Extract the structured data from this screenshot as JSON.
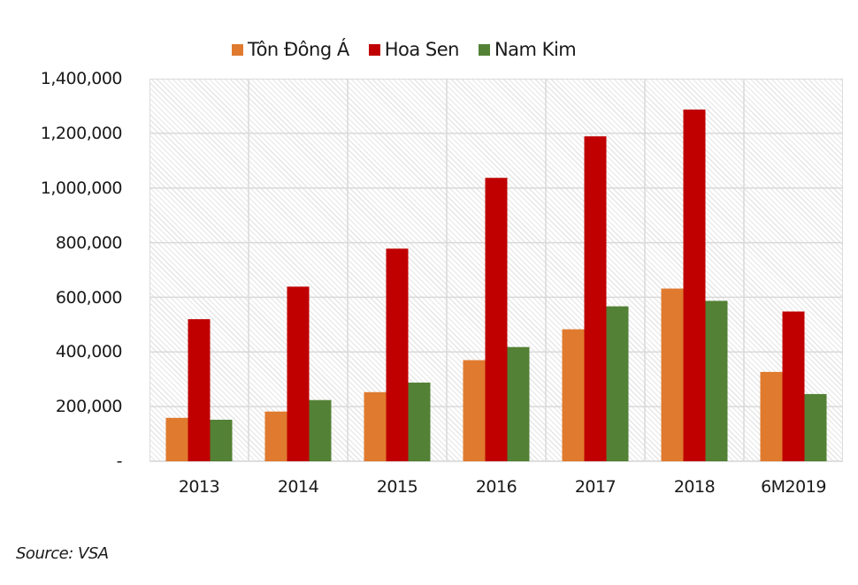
{
  "chart_data": {
    "type": "bar",
    "title": "",
    "xlabel": "",
    "ylabel": "",
    "categories": [
      "2013",
      "2014",
      "2015",
      "2016",
      "2017",
      "2018",
      "6M2019"
    ],
    "series": [
      {
        "name": "Tôn Đông Á",
        "color": "#E07A2E",
        "values": [
          159000,
          182000,
          253000,
          370000,
          483000,
          632000,
          327000
        ]
      },
      {
        "name": "Hoa Sen",
        "color": "#C00000",
        "values": [
          520000,
          639000,
          778000,
          1037000,
          1189000,
          1287000,
          548000
        ]
      },
      {
        "name": "Nam Kim",
        "color": "#538135",
        "values": [
          152000,
          224000,
          288000,
          418000,
          567000,
          587000,
          246000
        ]
      }
    ],
    "ylim": [
      0,
      1400000
    ],
    "yticks": [
      0,
      200000,
      400000,
      600000,
      800000,
      1000000,
      1200000,
      1400000
    ],
    "ytick_labels": [
      "-",
      "200,000",
      "400,000",
      "600,000",
      "800,000",
      "1,000,000",
      "1,200,000",
      "1,400,000"
    ],
    "grid": true,
    "legend_position": "top",
    "source": "Source: VSA"
  },
  "legend": [
    "Tôn Đông Á",
    "Hoa Sen",
    "Nam Kim"
  ],
  "yaxis": [
    "-",
    "200,000",
    "400,000",
    "600,000",
    "800,000",
    "1,000,000",
    "1,200,000",
    "1,400,000"
  ],
  "xaxis": [
    "2013",
    "2014",
    "2015",
    "2016",
    "2017",
    "2018",
    "6M2019"
  ],
  "source": "Source: VSA"
}
